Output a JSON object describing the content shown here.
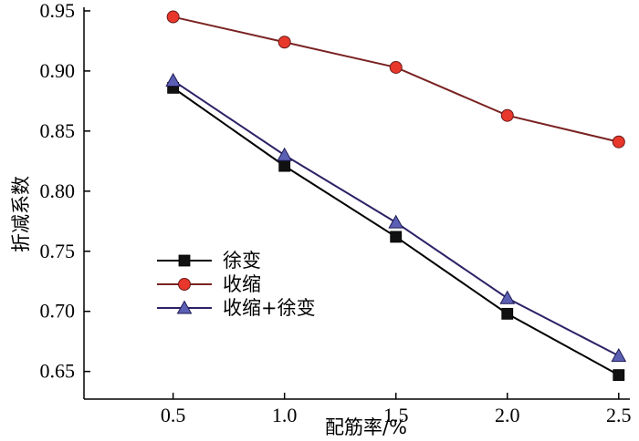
{
  "chart_data": {
    "type": "line",
    "xlabel": "配筋率/%",
    "ylabel": "折减系数",
    "x": [
      0.5,
      1.0,
      1.5,
      2.0,
      2.5
    ],
    "xticks": [
      "0.5",
      "1.0",
      "1.5",
      "2.0",
      "2.5"
    ],
    "yticks": [
      "0.65",
      "0.70",
      "0.75",
      "0.80",
      "0.85",
      "0.90",
      "0.95"
    ],
    "xlim": [
      0.1,
      2.55
    ],
    "ylim": [
      0.627,
      0.953
    ],
    "grid": false,
    "legend_position": "bottom-left",
    "series": [
      {
        "name": "徐变",
        "marker": "square",
        "line_color": "#000000",
        "marker_fill": "#111111",
        "values": [
          0.886,
          0.821,
          0.762,
          0.698,
          0.647
        ]
      },
      {
        "name": "收缩",
        "marker": "circle",
        "line_color": "#7a2222",
        "marker_fill": "#e8382b",
        "values": [
          0.945,
          0.924,
          0.903,
          0.863,
          0.841
        ]
      },
      {
        "name": "收缩+徐变",
        "marker": "triangle",
        "line_color": "#2b2266",
        "marker_fill": "#5b5fb4",
        "values": [
          0.892,
          0.83,
          0.774,
          0.711,
          0.663
        ]
      }
    ]
  }
}
